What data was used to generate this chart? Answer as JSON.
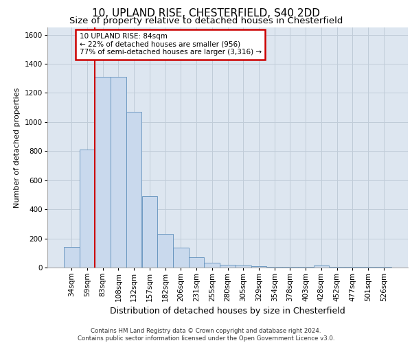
{
  "title1": "10, UPLAND RISE, CHESTERFIELD, S40 2DD",
  "title2": "Size of property relative to detached houses in Chesterfield",
  "xlabel": "Distribution of detached houses by size in Chesterfield",
  "ylabel": "Number of detached properties",
  "categories": [
    "34sqm",
    "59sqm",
    "83sqm",
    "108sqm",
    "132sqm",
    "157sqm",
    "182sqm",
    "206sqm",
    "231sqm",
    "255sqm",
    "280sqm",
    "305sqm",
    "329sqm",
    "354sqm",
    "378sqm",
    "403sqm",
    "428sqm",
    "452sqm",
    "477sqm",
    "501sqm",
    "526sqm"
  ],
  "values": [
    140,
    810,
    1310,
    1310,
    1070,
    490,
    230,
    135,
    70,
    35,
    20,
    15,
    10,
    5,
    5,
    5,
    13,
    5,
    5,
    5,
    5
  ],
  "bar_color": "#c9d9ed",
  "bar_edge_color": "#6090bb",
  "property_line_x": 2,
  "annotation_line1": "10 UPLAND RISE: 84sqm",
  "annotation_line2": "← 22% of detached houses are smaller (956)",
  "annotation_line3": "77% of semi-detached houses are larger (3,316) →",
  "annotation_box_color": "#ffffff",
  "annotation_box_edge": "#cc0000",
  "annotation_text_color": "#000000",
  "vline_color": "#cc0000",
  "ylim": [
    0,
    1650
  ],
  "yticks": [
    0,
    200,
    400,
    600,
    800,
    1000,
    1200,
    1400,
    1600
  ],
  "grid_color": "#c0ccd8",
  "background_color": "#dde6f0",
  "footer_line1": "Contains HM Land Registry data © Crown copyright and database right 2024.",
  "footer_line2": "Contains public sector information licensed under the Open Government Licence v3.0.",
  "title1_fontsize": 11,
  "title2_fontsize": 9.5,
  "xlabel_fontsize": 9,
  "ylabel_fontsize": 8,
  "tick_fontsize": 7.5,
  "footer_fontsize": 6.2
}
